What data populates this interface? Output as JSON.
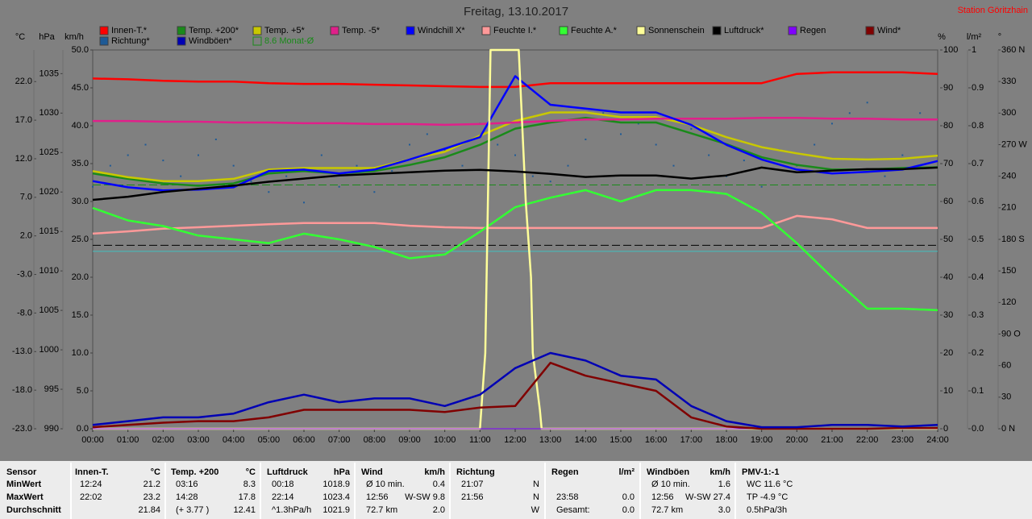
{
  "chart_data": {
    "type": "line",
    "title": "Freitag, 13.10.2017",
    "station": "Station Göritzhain",
    "xlim": [
      0,
      24
    ],
    "xticks": [
      {
        "value": 0,
        "label": "00:00"
      },
      {
        "value": 1,
        "label": "01:00"
      },
      {
        "value": 2,
        "label": "02:00"
      },
      {
        "value": 3,
        "label": "03:00"
      },
      {
        "value": 4,
        "label": "04:00"
      },
      {
        "value": 5,
        "label": "05:00"
      },
      {
        "value": 6,
        "label": "06:00"
      },
      {
        "value": 7,
        "label": "07:00"
      },
      {
        "value": 8,
        "label": "08:00"
      },
      {
        "value": 9,
        "label": "09:00"
      },
      {
        "value": 10,
        "label": "10:00"
      },
      {
        "value": 11,
        "label": "11:00"
      },
      {
        "value": 12,
        "label": "12:00"
      },
      {
        "value": 13,
        "label": "13:00"
      },
      {
        "value": 14,
        "label": "14:00"
      },
      {
        "value": 15,
        "label": "15:00"
      },
      {
        "value": 16,
        "label": "16:00"
      },
      {
        "value": 17,
        "label": "17:00"
      },
      {
        "value": 18,
        "label": "18:00"
      },
      {
        "value": 19,
        "label": "19:00"
      },
      {
        "value": 20,
        "label": "20:00"
      },
      {
        "value": 21,
        "label": "21:00"
      },
      {
        "value": 22,
        "label": "22:00"
      },
      {
        "value": 23,
        "label": "23:00"
      },
      {
        "value": 24,
        "label": "24:00"
      }
    ],
    "axes": [
      {
        "unit": "°C",
        "side": "left",
        "lim": [
          -23,
          26.1
        ],
        "ticks": [
          {
            "value": -23,
            "label": "-23.0"
          },
          {
            "value": -18,
            "label": "-18.0"
          },
          {
            "value": -13,
            "label": "-13.0"
          },
          {
            "value": -8,
            "label": "-8.0"
          },
          {
            "value": -3,
            "label": "-3.0"
          },
          {
            "value": 2,
            "label": "2.0"
          },
          {
            "value": 7,
            "label": "7.0"
          },
          {
            "value": 12,
            "label": "12.0"
          },
          {
            "value": 17,
            "label": "17.0"
          },
          {
            "value": 22,
            "label": "22.0"
          }
        ]
      },
      {
        "unit": "hPa",
        "side": "left",
        "lim": [
          990,
          1038
        ],
        "ticks": [
          990,
          995,
          1000,
          1005,
          1010,
          1015,
          1020,
          1025,
          1030,
          1035
        ]
      },
      {
        "unit": "km/h",
        "side": "left",
        "lim": [
          0,
          50
        ],
        "ticks": [
          {
            "value": 0,
            "label": "0.0"
          },
          {
            "value": 5,
            "label": "5.0"
          },
          {
            "value": 10,
            "label": "10.0"
          },
          {
            "value": 15,
            "label": "15.0"
          },
          {
            "value": 20,
            "label": "20.0"
          },
          {
            "value": 25,
            "label": "25.0"
          },
          {
            "value": 30,
            "label": "30.0"
          },
          {
            "value": 35,
            "label": "35.0"
          },
          {
            "value": 40,
            "label": "40.0"
          },
          {
            "value": 45,
            "label": "45.0"
          },
          {
            "value": 50,
            "label": "50.0"
          }
        ]
      },
      {
        "unit": "%",
        "side": "right",
        "lim": [
          0,
          100
        ],
        "ticks": [
          0,
          10,
          20,
          30,
          40,
          50,
          60,
          70,
          80,
          90,
          100
        ]
      },
      {
        "unit": "l/m²",
        "side": "right",
        "lim": [
          0,
          1
        ],
        "ticks": [
          {
            "value": 0,
            "label": "0.0"
          },
          0.1,
          0.2,
          0.3,
          0.4,
          0.5,
          0.6,
          0.7,
          0.8,
          0.9,
          1
        ]
      },
      {
        "unit": "°",
        "side": "right",
        "lim": [
          0,
          360
        ],
        "ticks": [
          {
            "value": 0,
            "label": "0 N"
          },
          30,
          60,
          {
            "value": 90,
            "label": "90 O"
          },
          120,
          150,
          {
            "value": 180,
            "label": "180 S"
          },
          210,
          240,
          {
            "value": 270,
            "label": "270 W"
          },
          300,
          330,
          {
            "value": 360,
            "label": "360 N"
          }
        ]
      }
    ],
    "x": [
      0,
      1,
      2,
      3,
      4,
      5,
      6,
      7,
      8,
      9,
      10,
      11,
      12,
      13,
      14,
      15,
      16,
      17,
      18,
      19,
      20,
      21,
      22,
      23,
      24
    ],
    "series": [
      {
        "name": "Innen-T.*",
        "color": "#ff0000",
        "axis": 0,
        "values": [
          22.4,
          22.3,
          22.1,
          22.0,
          22.0,
          21.8,
          21.7,
          21.7,
          21.6,
          21.5,
          21.4,
          21.3,
          21.3,
          21.8,
          21.8,
          21.8,
          21.8,
          21.8,
          21.8,
          21.8,
          23.0,
          23.2,
          23.2,
          23.2,
          23.0
        ]
      },
      {
        "name": "Temp. +200*",
        "color": "#1a8a1a",
        "axis": 0,
        "values": [
          10.1,
          9.4,
          8.8,
          8.5,
          8.8,
          10.1,
          10.4,
          10.1,
          10.4,
          11.2,
          12.2,
          13.8,
          15.9,
          16.7,
          17.3,
          16.7,
          16.7,
          15.3,
          13.9,
          12.2,
          11.2,
          10.6,
          10.6,
          10.8,
          10.9
        ]
      },
      {
        "name": "Temp. +5*",
        "color": "#c8c800",
        "axis": 0,
        "values": [
          10.4,
          9.6,
          9.1,
          9.1,
          9.4,
          10.6,
          10.8,
          10.8,
          10.8,
          11.9,
          12.9,
          15.0,
          16.9,
          18.0,
          18.0,
          17.4,
          17.4,
          16.4,
          14.8,
          13.5,
          12.7,
          12.0,
          11.9,
          12.0,
          12.4
        ]
      },
      {
        "name": "Temp. -5*",
        "color": "#e0208a",
        "axis": 0,
        "values": [
          16.9,
          16.9,
          16.8,
          16.8,
          16.7,
          16.7,
          16.6,
          16.6,
          16.5,
          16.5,
          16.4,
          16.5,
          16.7,
          16.9,
          17.1,
          17.1,
          17.2,
          17.2,
          17.2,
          17.3,
          17.3,
          17.2,
          17.2,
          17.1,
          17.1
        ]
      },
      {
        "name": "Windchill X*",
        "color": "#0000ff",
        "axis": 0,
        "values": [
          9.1,
          8.3,
          7.9,
          8.0,
          8.3,
          10.4,
          10.6,
          10.1,
          10.6,
          11.9,
          13.3,
          14.8,
          22.7,
          19.0,
          18.5,
          18.0,
          18.0,
          16.4,
          13.8,
          11.9,
          10.6,
          10.1,
          10.3,
          10.6,
          11.7
        ]
      },
      {
        "name": "Feuchte I.*",
        "color": "#ff9999",
        "axis": 3,
        "values": [
          51.5,
          52.1,
          52.8,
          53.2,
          53.6,
          54.0,
          54.3,
          54.3,
          54.3,
          53.6,
          53.2,
          53.0,
          53.0,
          53.0,
          53.0,
          53.0,
          53.0,
          53.0,
          53.0,
          53.0,
          56.2,
          55.3,
          53.0,
          53.0,
          53.0
        ]
      },
      {
        "name": "Feuchte A.*",
        "color": "#33ff33",
        "axis": 3,
        "values": [
          58.3,
          55.0,
          53.5,
          51.0,
          50.0,
          49.0,
          51.5,
          50.0,
          48.0,
          45.0,
          46.0,
          52.0,
          58.5,
          61.0,
          63.0,
          60.0,
          63.0,
          63.0,
          62.0,
          57.0,
          49.0,
          40.0,
          31.7,
          31.7,
          31.3
        ]
      },
      {
        "name": "Sonnenschein",
        "color": "#ffff99",
        "axis": 3,
        "x": [
          0,
          11.0,
          11.15,
          11.3,
          12.1,
          12.3,
          12.45,
          12.5,
          12.7,
          12.75,
          24
        ],
        "values": [
          0,
          0,
          20,
          100,
          100,
          60,
          40,
          20,
          5,
          0,
          0
        ]
      },
      {
        "name": "Luftdruck*",
        "color": "#000000",
        "axis": 1,
        "values": [
          1019.0,
          1019.4,
          1020.0,
          1020.4,
          1020.8,
          1021.3,
          1021.7,
          1022.1,
          1022.3,
          1022.5,
          1022.7,
          1022.8,
          1022.6,
          1022.3,
          1021.9,
          1022.1,
          1022.1,
          1021.7,
          1022.1,
          1023.1,
          1022.5,
          1022.7,
          1022.9,
          1022.9,
          1023.1
        ]
      },
      {
        "name": "Regen",
        "color": "#8000ff",
        "axis": 4,
        "values": [
          0,
          0,
          0,
          0,
          0,
          0,
          0,
          0,
          0,
          0,
          0,
          0,
          0,
          0,
          0,
          0,
          0,
          0,
          0,
          0,
          0,
          0,
          0,
          0,
          0
        ]
      },
      {
        "name": "Wind*",
        "color": "#800000",
        "axis": 2,
        "values": [
          0.2,
          0.5,
          0.8,
          1.0,
          1.0,
          1.5,
          2.5,
          2.5,
          2.5,
          2.5,
          2.2,
          2.8,
          3.0,
          8.7,
          7.0,
          6.0,
          5.0,
          1.5,
          0.3,
          0,
          0,
          0,
          0,
          0.1,
          0.1
        ]
      },
      {
        "name": "Richtung*",
        "color": "#1e5a96",
        "axis": 5,
        "scatter": true,
        "x": [
          0,
          0.5,
          1,
          1.5,
          2,
          2.5,
          3,
          3.5,
          4,
          4.5,
          5,
          5.5,
          6,
          6.5,
          7,
          7.5,
          8,
          8.5,
          9,
          9.5,
          10,
          10.5,
          11,
          11.5,
          12,
          12.5,
          13,
          13.5,
          14,
          14.5,
          15,
          15.5,
          16,
          16.5,
          17,
          17.5,
          18,
          18.5,
          19,
          19.5,
          20,
          20.5,
          21,
          21.5,
          22,
          22.5,
          23,
          23.5
        ],
        "values": [
          230,
          250,
          260,
          270,
          255,
          240,
          260,
          275,
          250,
          235,
          225,
          240,
          215,
          260,
          230,
          250,
          225,
          245,
          270,
          280,
          265,
          250,
          290,
          270,
          260,
          240,
          235,
          250,
          275,
          300,
          280,
          290,
          270,
          250,
          285,
          260,
          240,
          255,
          230,
          265,
          250,
          270,
          290,
          300,
          310,
          240,
          260,
          300
        ]
      },
      {
        "name": "Windböen*",
        "color": "#0000b4",
        "axis": 2,
        "values": [
          0.5,
          1.0,
          1.5,
          1.5,
          2.0,
          3.5,
          4.5,
          3.5,
          4.0,
          4.0,
          3.0,
          4.5,
          8.0,
          10.0,
          9.0,
          7.0,
          6.5,
          3.0,
          1.0,
          0.2,
          0.2,
          0.5,
          0.5,
          0.3,
          0.5
        ]
      }
    ],
    "reference_lines": [
      {
        "name": "8.6 Monat-Ø",
        "value": 8.6,
        "axis": 0,
        "color": "#1a8a1a",
        "dashed": true
      },
      {
        "value": 1013.25,
        "axis": 1,
        "color": "#000000",
        "dashed": true
      },
      {
        "value": 0,
        "axis": 0,
        "color": "#40c0c0",
        "dashed": false
      }
    ]
  },
  "table": {
    "sensor_header": "Sensor",
    "row_labels": [
      "MinWert",
      "MaxWert",
      "Durchschnitt"
    ],
    "groups": [
      {
        "name": "Innen-T.",
        "unit": "°C",
        "cells": [
          [
            "12:24",
            "21.2"
          ],
          [
            "22:02",
            "23.2"
          ],
          [
            null,
            "21.84"
          ]
        ]
      },
      {
        "name": "Temp. +200",
        "unit": "°C",
        "cells": [
          [
            "03:16",
            "8.3"
          ],
          [
            "14:28",
            "17.8"
          ],
          [
            "(+ 3.77 )",
            "12.41"
          ]
        ]
      },
      {
        "name": "Luftdruck",
        "unit": "hPa",
        "cells": [
          [
            "00:18",
            "1018.9"
          ],
          [
            "22:14",
            "1023.4"
          ],
          [
            "^1.3hPa/h",
            "1021.9"
          ]
        ]
      },
      {
        "name": "Wind",
        "unit": "km/h",
        "cells": [
          [
            "Ø 10 min.",
            "0.4"
          ],
          [
            "12:56",
            "W-SW 9.8"
          ],
          [
            "72.7 km",
            "2.0"
          ]
        ]
      },
      {
        "name": "Richtung",
        "unit": null,
        "cells": [
          [
            "21:07",
            "N"
          ],
          [
            "21:56",
            "N"
          ],
          [
            null,
            "W"
          ]
        ]
      },
      {
        "name": "Regen",
        "unit": "l/m²",
        "cells": [
          [
            null,
            null
          ],
          [
            "23:58",
            "0.0"
          ],
          [
            "Gesamt:",
            "0.0"
          ]
        ]
      },
      {
        "name": "Windböen",
        "unit": "km/h",
        "cells": [
          [
            "Ø 10 min.",
            "1.6"
          ],
          [
            "12:56",
            "W-SW 27.4"
          ],
          [
            "72.7 km",
            "3.0"
          ]
        ]
      },
      {
        "name": "PMV-1:-1",
        "unit": null,
        "cells": [
          [
            "WC 11.6 °C",
            null
          ],
          [
            "TP -4.9 °C",
            null
          ],
          [
            "0.5hPa/3h",
            null
          ]
        ]
      }
    ]
  }
}
